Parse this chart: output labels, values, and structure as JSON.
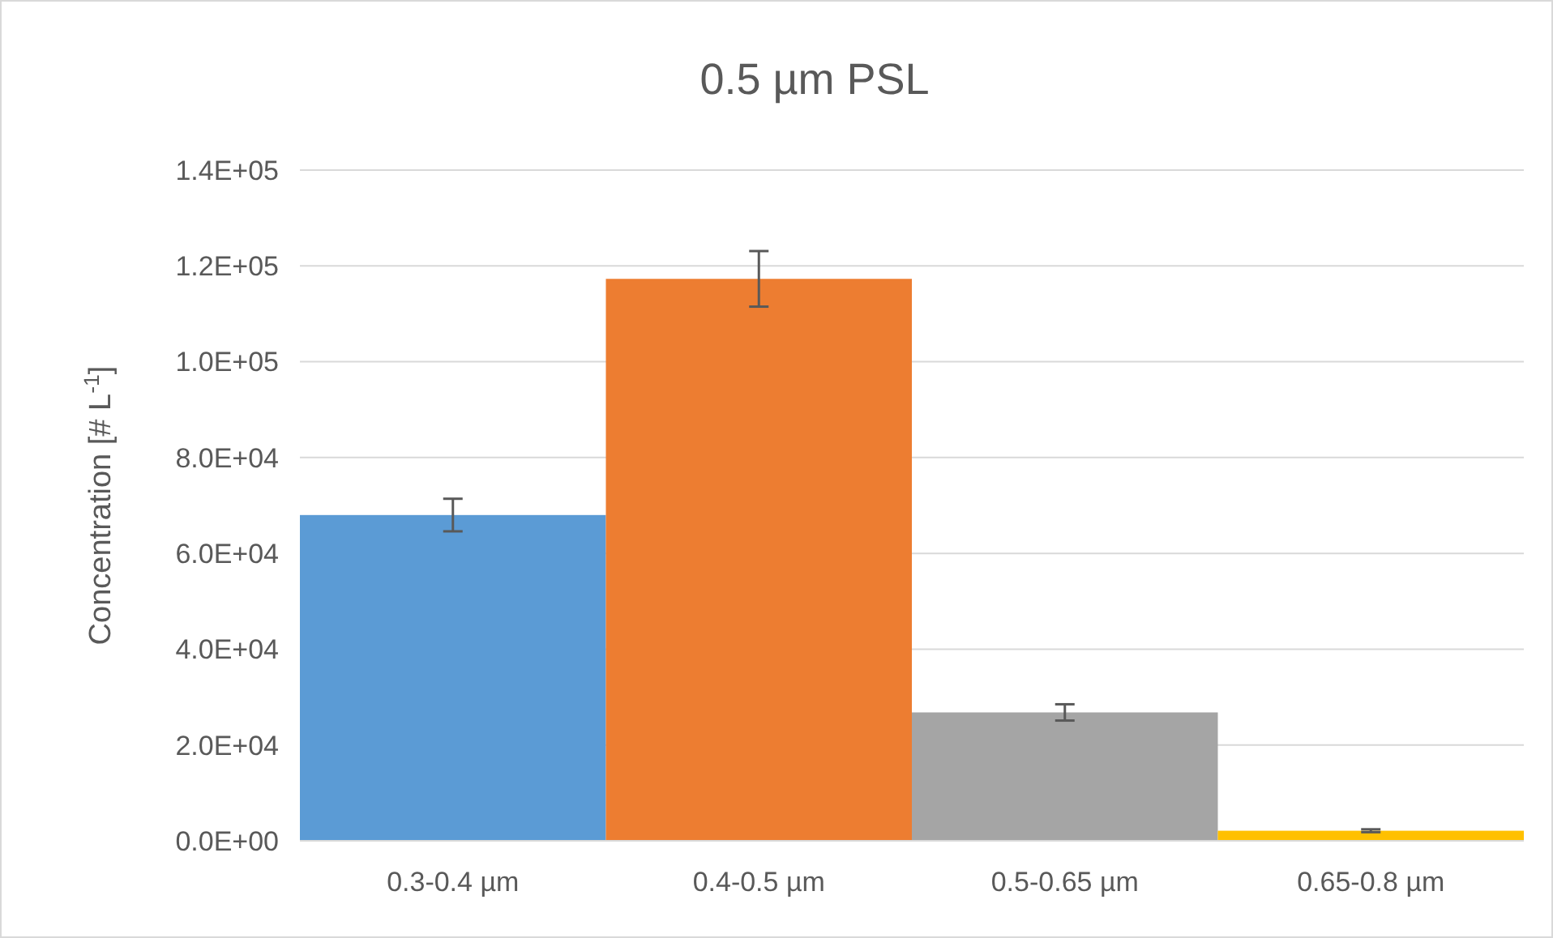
{
  "chart_data": {
    "type": "bar",
    "title": "0.5 µm PSL",
    "ylabel": "Concentration [# L$^{-1}$]",
    "categories": [
      "0.3-0.4 µm",
      "0.4-0.5 µm",
      "0.5-0.65 µm",
      "0.65-0.8 µm"
    ],
    "values": [
      68000,
      117300,
      26800,
      2100
    ],
    "errors": [
      3400,
      5800,
      1700,
      300
    ],
    "colors": [
      "#5b9bd5",
      "#ed7d31",
      "#a5a5a5",
      "#ffc000"
    ],
    "ylim": [
      0,
      140000
    ],
    "yticks": [
      {
        "value": 0,
        "label": "0.0E+00"
      },
      {
        "value": 20000,
        "label": "2.0E+04"
      },
      {
        "value": 40000,
        "label": "4.0E+04"
      },
      {
        "value": 60000,
        "label": "6.0E+04"
      },
      {
        "value": 80000,
        "label": "8.0E+04"
      },
      {
        "value": 100000,
        "label": "1.0E+05"
      },
      {
        "value": 120000,
        "label": "1.2E+05"
      },
      {
        "value": 140000,
        "label": "1.4E+05"
      }
    ],
    "grid": "y"
  }
}
